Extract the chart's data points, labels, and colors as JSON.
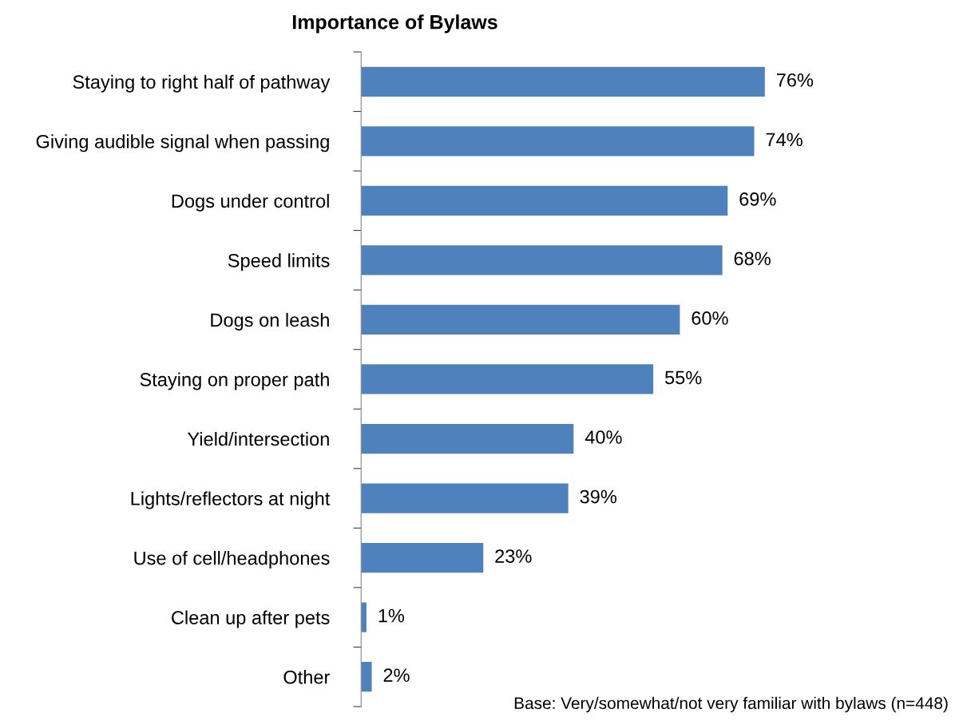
{
  "chart_data": {
    "type": "bar",
    "orientation": "horizontal",
    "title": "Importance of Bylaws",
    "categories": [
      "Staying to right half of pathway",
      "Giving audible signal when passing",
      "Dogs under control",
      "Speed limits",
      "Dogs on leash",
      "Staying on proper path",
      "Yield/intersection",
      "Lights/reflectors at night",
      "Use of cell/headphones",
      "Clean up after pets",
      "Other"
    ],
    "values": [
      76,
      74,
      69,
      68,
      60,
      55,
      40,
      39,
      23,
      1,
      2
    ],
    "value_labels": [
      "76%",
      "74%",
      "69%",
      "68%",
      "60%",
      "55%",
      "40%",
      "39%",
      "23%",
      "1%",
      "2%"
    ],
    "color": "#4f81bd",
    "annotations": [
      "Base: Very/somewhat/not very familiar with bylaws (n=448)"
    ],
    "grid": false,
    "legend": false
  }
}
